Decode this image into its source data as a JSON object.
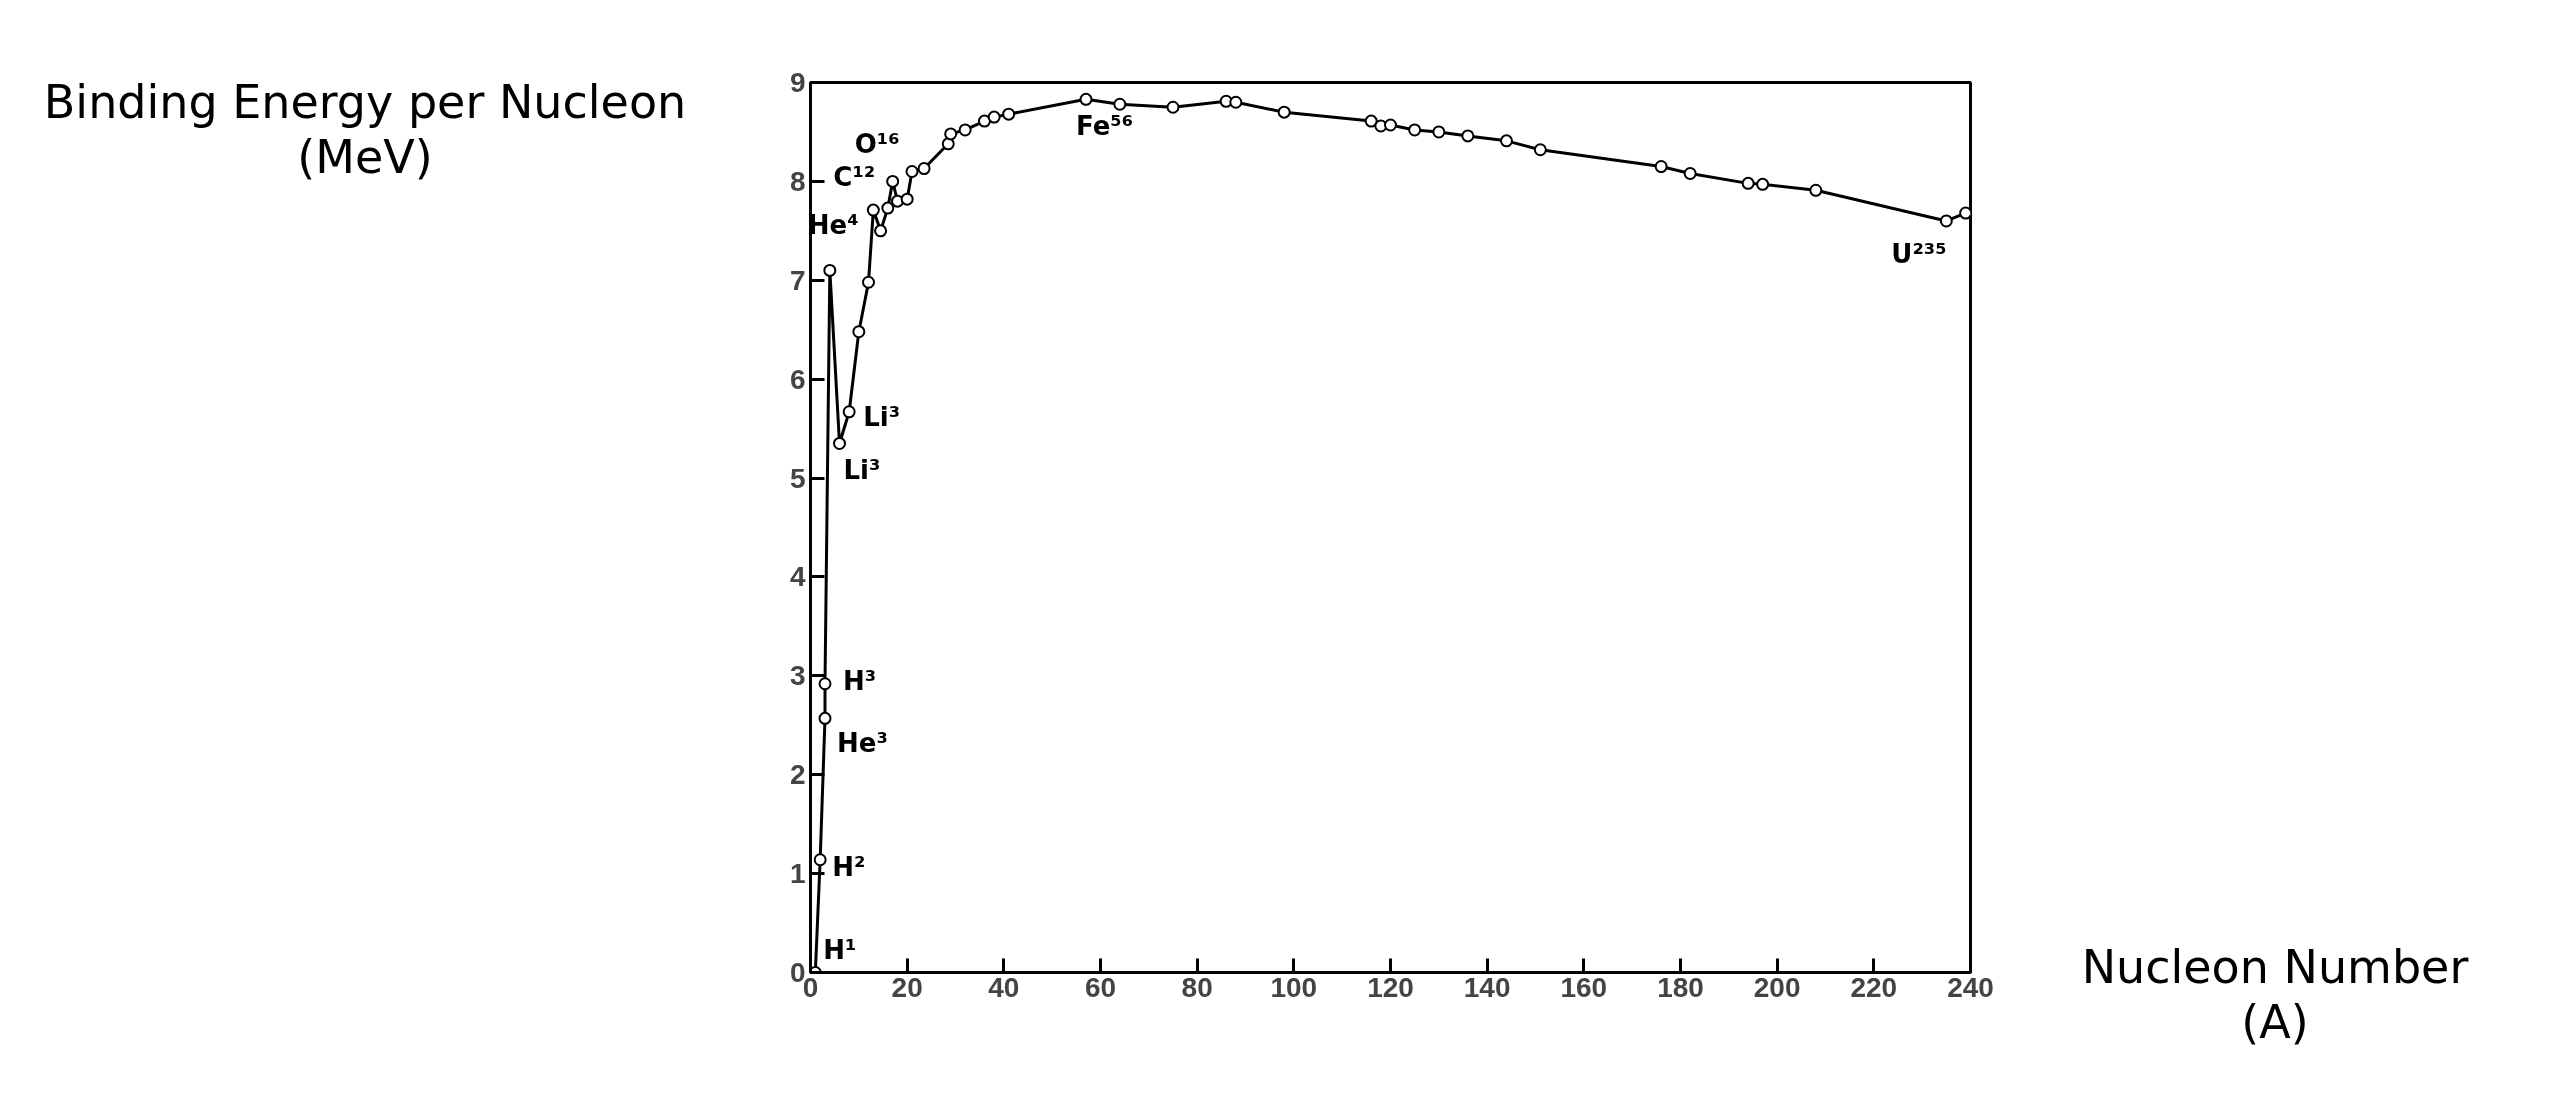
{
  "chart_data": {
    "type": "line",
    "xlabel": "Nucleon Number\n(A)",
    "ylabel": "Binding Energy per Nucleon\n(MeV)",
    "x": [
      1,
      2,
      3,
      3,
      4,
      6,
      8,
      10,
      12,
      13,
      14.5,
      16,
      17,
      18,
      20,
      21,
      23.5,
      28.5,
      29,
      32,
      36,
      38,
      41,
      57,
      64,
      75,
      86,
      88,
      98,
      116,
      118,
      120,
      125,
      130,
      136,
      144,
      151,
      176,
      182,
      194,
      197,
      208,
      235,
      239
    ],
    "values": [
      0,
      1.14,
      2.57,
      2.92,
      7.1,
      5.35,
      5.67,
      6.48,
      6.98,
      7.71,
      7.5,
      7.73,
      8.0,
      7.8,
      7.82,
      8.1,
      8.13,
      8.38,
      8.48,
      8.52,
      8.61,
      8.65,
      8.68,
      8.83,
      8.78,
      8.75,
      8.81,
      8.8,
      8.7,
      8.61,
      8.56,
      8.57,
      8.52,
      8.5,
      8.46,
      8.41,
      8.32,
      8.15,
      8.08,
      7.98,
      7.97,
      7.91,
      7.6,
      7.68
    ],
    "color": "#000000",
    "marker": "circle",
    "line_style": "solid",
    "grid": false,
    "xlim": [
      0,
      240
    ],
    "ylim": [
      0,
      9
    ],
    "xticks": [
      0,
      20,
      40,
      60,
      80,
      100,
      120,
      140,
      160,
      180,
      200,
      220,
      240
    ],
    "yticks": [
      0,
      1,
      2,
      3,
      4,
      5,
      6,
      7,
      8,
      9
    ],
    "annotations": [
      {
        "text": "H¹",
        "x": 1,
        "y": 0
      },
      {
        "text": "H²",
        "x": 2,
        "y": 1.14
      },
      {
        "text": "He³",
        "x": 3,
        "y": 2.57
      },
      {
        "text": "H³",
        "x": 3,
        "y": 2.92
      },
      {
        "text": "He⁴",
        "x": 4,
        "y": 7.1
      },
      {
        "text": "Li³",
        "x": 6,
        "y": 5.35
      },
      {
        "text": "Li³",
        "x": 8,
        "y": 5.67
      },
      {
        "text": "C¹²",
        "x": 13,
        "y": 7.71
      },
      {
        "text": "O¹⁶",
        "x": 17,
        "y": 8.0
      },
      {
        "text": "Fe⁵⁶",
        "x": 57,
        "y": 8.83
      },
      {
        "text": "U²³⁵",
        "x": 235,
        "y": 7.6
      }
    ]
  }
}
